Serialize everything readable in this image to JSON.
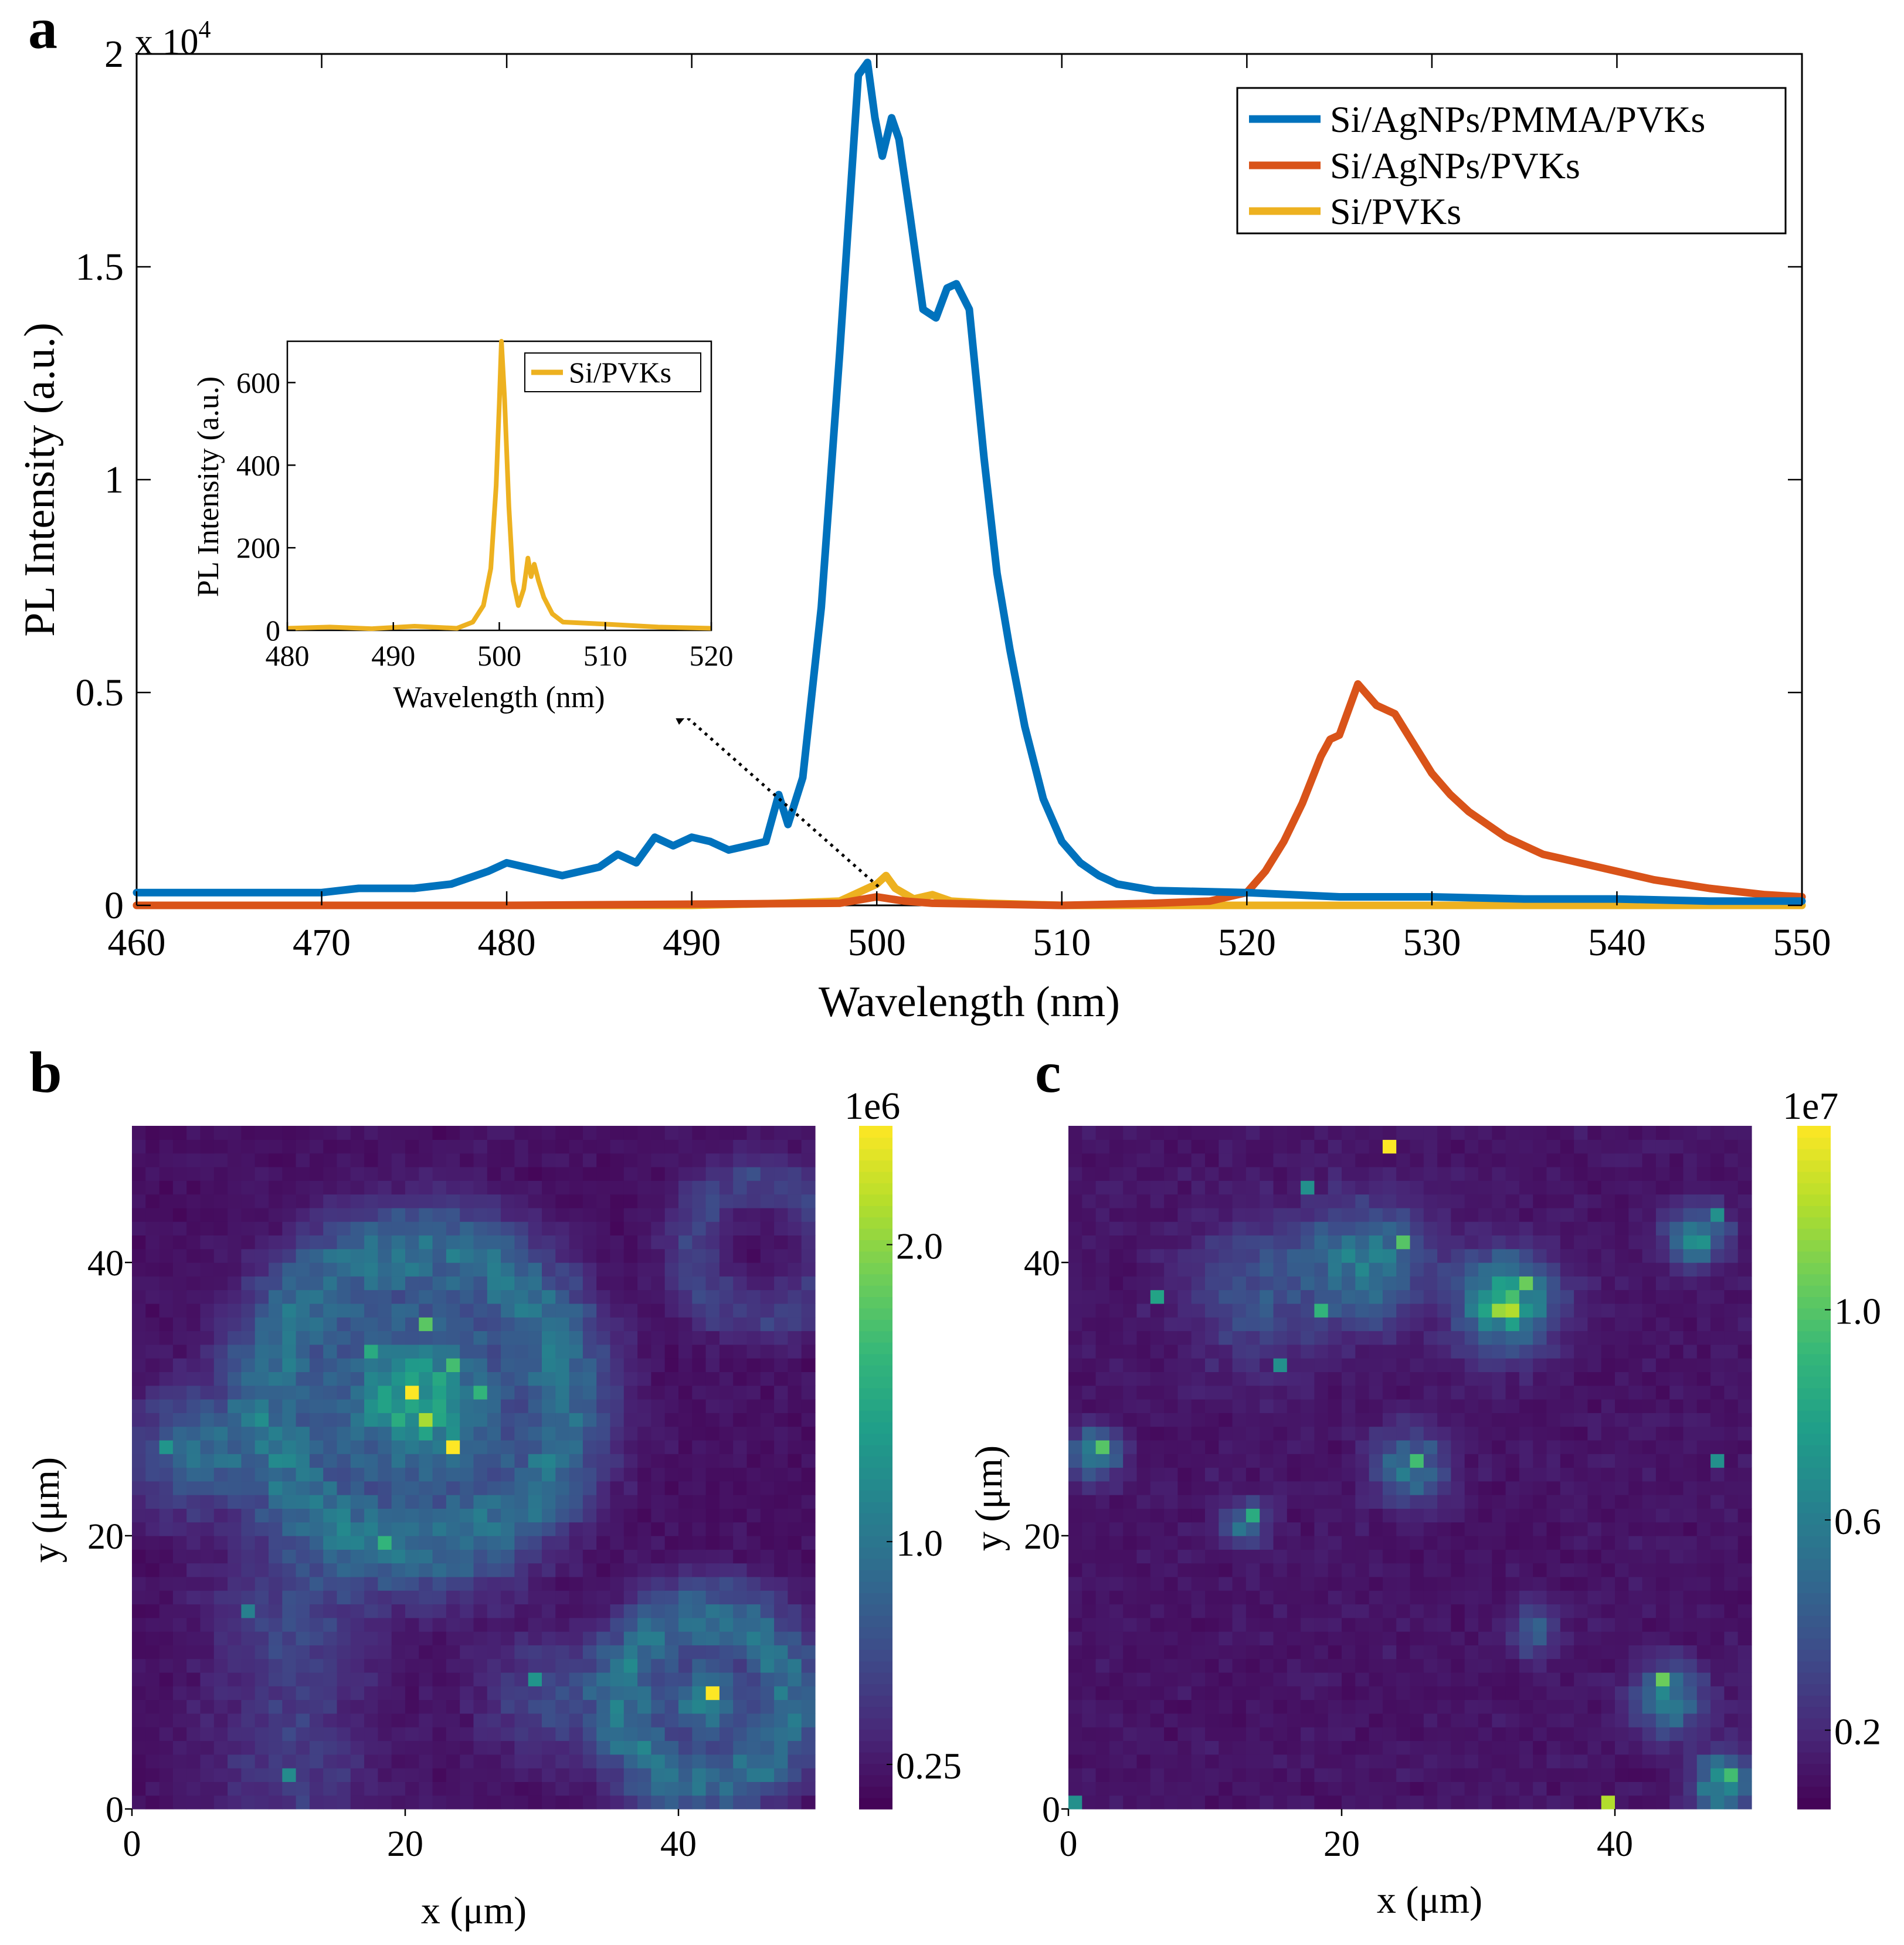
{
  "figure": {
    "panel_letters": [
      "a",
      "b",
      "c"
    ],
    "colors": {
      "blue": "#0072BD",
      "orange": "#D95319",
      "yellow": "#EDB120",
      "black": "#000000"
    }
  },
  "chart_data": [
    {
      "id": "a",
      "type": "line",
      "title": "",
      "xlabel": "Wavelength (nm)",
      "ylabel": "PL Intensity (a.u.)",
      "y_exponent_label": "x 10",
      "y_exponent_power": "4",
      "xlim": [
        460,
        550
      ],
      "ylim": [
        0,
        2.0
      ],
      "x_ticks": [
        460,
        470,
        480,
        490,
        500,
        510,
        520,
        530,
        540,
        550
      ],
      "y_ticks": [
        0,
        0.5,
        1,
        1.5,
        2
      ],
      "y_tick_labels": [
        "0",
        "0.5",
        "1",
        "1.5",
        "2"
      ],
      "legend_position": "top-right",
      "series": [
        {
          "name": "Si/AgNPs/PMMA/PVKs",
          "color": "#0072BD",
          "x": [
            460,
            465,
            470,
            472,
            475,
            477,
            479,
            480,
            481,
            482,
            483,
            485,
            486,
            487,
            488,
            489,
            490,
            491,
            492,
            493,
            494,
            494.7,
            495.2,
            496,
            497,
            498,
            499,
            499.5,
            499.9,
            500.3,
            500.8,
            501.2,
            501.8,
            502.5,
            503.2,
            503.8,
            504.3,
            505,
            505.8,
            506.5,
            507.2,
            508,
            509,
            510,
            511,
            512,
            513,
            515,
            520,
            525,
            530,
            535,
            540,
            545,
            550
          ],
          "y": [
            0.03,
            0.03,
            0.03,
            0.04,
            0.04,
            0.05,
            0.08,
            0.1,
            0.09,
            0.08,
            0.07,
            0.09,
            0.12,
            0.1,
            0.16,
            0.14,
            0.16,
            0.15,
            0.13,
            0.14,
            0.15,
            0.26,
            0.19,
            0.3,
            0.7,
            1.3,
            1.95,
            1.98,
            1.85,
            1.76,
            1.85,
            1.8,
            1.62,
            1.4,
            1.38,
            1.45,
            1.46,
            1.4,
            1.05,
            0.78,
            0.6,
            0.42,
            0.25,
            0.15,
            0.1,
            0.07,
            0.05,
            0.035,
            0.03,
            0.02,
            0.02,
            0.015,
            0.015,
            0.01,
            0.01
          ]
        },
        {
          "name": "Si/AgNPs/PVKs",
          "color": "#D95319",
          "x": [
            460,
            480,
            498,
            500,
            501.5,
            503,
            510,
            515,
            518,
            520,
            521,
            522,
            523,
            524,
            524.5,
            525,
            525.5,
            526,
            527,
            528,
            529,
            530,
            531,
            532,
            534,
            536,
            538,
            540,
            542,
            545,
            548,
            550
          ],
          "y": [
            0.0,
            0.0,
            0.005,
            0.02,
            0.01,
            0.005,
            0.0,
            0.005,
            0.01,
            0.03,
            0.08,
            0.15,
            0.24,
            0.35,
            0.39,
            0.4,
            0.46,
            0.52,
            0.47,
            0.45,
            0.38,
            0.31,
            0.26,
            0.22,
            0.16,
            0.12,
            0.1,
            0.08,
            0.06,
            0.04,
            0.025,
            0.02
          ]
        },
        {
          "name": "Si/PVKs",
          "color": "#EDB120",
          "x": [
            460,
            490,
            495,
            498,
            499,
            500,
            500.5,
            501,
            502,
            503,
            504,
            506,
            510,
            550
          ],
          "y": [
            0.0,
            0.0,
            0.005,
            0.01,
            0.03,
            0.05,
            0.07,
            0.04,
            0.015,
            0.025,
            0.01,
            0.005,
            0.0,
            0.0
          ]
        }
      ],
      "inset": {
        "type": "line",
        "xlabel": "Wavelength (nm)",
        "ylabel": "PL Intensity (a.u.)",
        "xlim": [
          480,
          520
        ],
        "ylim": [
          0,
          700
        ],
        "x_ticks": [
          480,
          490,
          500,
          510,
          520
        ],
        "y_ticks": [
          0,
          200,
          400,
          600
        ],
        "legend_position": "top-right",
        "series": [
          {
            "name": "Si/PVKs",
            "color": "#EDB120",
            "x": [
              480,
              484,
              488,
              492,
              496,
              497.5,
              498.5,
              499.2,
              499.7,
              500,
              500.2,
              500.5,
              500.9,
              501.3,
              501.8,
              502.3,
              502.7,
              503,
              503.3,
              503.7,
              504.2,
              505,
              506,
              510,
              515,
              520
            ],
            "y": [
              5,
              8,
              4,
              10,
              5,
              20,
              60,
              150,
              350,
              550,
              700,
              560,
              300,
              120,
              60,
              100,
              175,
              130,
              160,
              120,
              80,
              40,
              20,
              15,
              8,
              5
            ]
          }
        ]
      },
      "annotation": {
        "type": "dotted-arrow",
        "from_data": [
          500.5,
          0.02
        ],
        "to_label": "inset"
      }
    },
    {
      "id": "b",
      "type": "heatmap",
      "xlabel": "x (μm)",
      "ylabel": "y (μm)",
      "xlim": [
        0,
        50
      ],
      "ylim": [
        0,
        50
      ],
      "x_ticks": [
        0,
        20,
        40
      ],
      "y_ticks": [
        0,
        20,
        40
      ],
      "grid_size": [
        50,
        50
      ],
      "colormap": "viridis",
      "colorbar": {
        "multiplier_label": "1e6",
        "min": 0.1,
        "max": 2.4,
        "ticks": [
          0.25,
          1.0,
          2.0
        ],
        "tick_labels": [
          "0.25",
          "1.0",
          "2.0"
        ]
      },
      "background_level": 0.2,
      "features": [
        {
          "kind": "blob",
          "x": 21,
          "y": 30,
          "radius": 7,
          "value": 1.2
        },
        {
          "kind": "ring",
          "x": 21,
          "y": 30,
          "radius": 11,
          "width": 2.5,
          "value": 0.7
        },
        {
          "kind": "blob",
          "x": 4,
          "y": 26,
          "radius": 5,
          "value": 0.65
        },
        {
          "kind": "ring",
          "x": 42,
          "y": 8,
          "radius": 6,
          "width": 2,
          "value": 0.75
        },
        {
          "kind": "blob",
          "x": 42,
          "y": 8,
          "radius": 2.5,
          "value": 1.2
        },
        {
          "kind": "ring",
          "x": 46,
          "y": 41,
          "radius": 5,
          "width": 1.5,
          "value": 0.35
        },
        {
          "kind": "blob",
          "x": 30,
          "y": 8,
          "radius": 5,
          "value": 0.4
        },
        {
          "kind": "blob",
          "x": 12,
          "y": 14,
          "radius": 7,
          "value": 0.35
        },
        {
          "kind": "blob",
          "x": 12,
          "y": 3,
          "radius": 7,
          "value": 0.3
        }
      ],
      "hotspots": [
        {
          "x": 20,
          "y": 30,
          "value": 2.4
        },
        {
          "x": 23,
          "y": 26,
          "value": 2.4
        },
        {
          "x": 42,
          "y": 8,
          "value": 2.4
        },
        {
          "x": 21,
          "y": 28,
          "value": 2.1
        },
        {
          "x": 21,
          "y": 35,
          "value": 1.8
        },
        {
          "x": 23,
          "y": 32,
          "value": 1.7
        },
        {
          "x": 17,
          "y": 33,
          "value": 1.5
        },
        {
          "x": 25,
          "y": 30,
          "value": 1.6
        },
        {
          "x": 18,
          "y": 19,
          "value": 1.6
        },
        {
          "x": 2,
          "y": 26,
          "value": 1.3
        },
        {
          "x": 8,
          "y": 14,
          "value": 1.1
        },
        {
          "x": 29,
          "y": 9,
          "value": 1.3
        },
        {
          "x": 11,
          "y": 2,
          "value": 1.2
        }
      ]
    },
    {
      "id": "c",
      "type": "heatmap",
      "xlabel": "x (μm)",
      "ylabel": "y (μm)",
      "xlim": [
        0,
        50
      ],
      "ylim": [
        0,
        50
      ],
      "x_ticks": [
        0,
        20,
        40
      ],
      "y_ticks": [
        0,
        20,
        40
      ],
      "grid_size": [
        50,
        50
      ],
      "colormap": "viridis",
      "colorbar": {
        "multiplier_label": "1e7",
        "min": 0.05,
        "max": 1.35,
        "ticks": [
          0.2,
          0.6,
          1.0
        ],
        "tick_labels": [
          "0.2",
          "0.6",
          "1.0"
        ]
      },
      "background_level": 0.12,
      "features": [
        {
          "kind": "blob",
          "x": 32,
          "y": 37,
          "radius": 4,
          "value": 0.7
        },
        {
          "kind": "blob",
          "x": 22,
          "y": 40,
          "radius": 5,
          "value": 0.45
        },
        {
          "kind": "blob",
          "x": 14,
          "y": 38,
          "radius": 6,
          "value": 0.25
        },
        {
          "kind": "blob",
          "x": 25,
          "y": 25,
          "radius": 3,
          "value": 0.45
        },
        {
          "kind": "blob",
          "x": 2,
          "y": 26,
          "radius": 2,
          "value": 0.6
        },
        {
          "kind": "blob",
          "x": 46,
          "y": 42,
          "radius": 2.5,
          "value": 0.55
        },
        {
          "kind": "blob",
          "x": 44,
          "y": 8,
          "radius": 3,
          "value": 0.5
        },
        {
          "kind": "blob",
          "x": 48,
          "y": 2,
          "radius": 2.5,
          "value": 0.6
        },
        {
          "kind": "blob",
          "x": 34,
          "y": 13,
          "radius": 2,
          "value": 0.35
        },
        {
          "kind": "blob",
          "x": 13,
          "y": 21,
          "radius": 2,
          "value": 0.4
        }
      ],
      "hotspots": [
        {
          "x": 23,
          "y": 48,
          "value": 1.35
        },
        {
          "x": 39,
          "y": 0,
          "value": 1.2
        },
        {
          "x": 32,
          "y": 36,
          "value": 1.2
        },
        {
          "x": 31,
          "y": 36,
          "value": 1.15
        },
        {
          "x": 33,
          "y": 38,
          "value": 1.05
        },
        {
          "x": 24,
          "y": 41,
          "value": 1.0
        },
        {
          "x": 2,
          "y": 26,
          "value": 1.0
        },
        {
          "x": 25,
          "y": 25,
          "value": 0.95
        },
        {
          "x": 43,
          "y": 9,
          "value": 1.05
        },
        {
          "x": 48,
          "y": 2,
          "value": 0.95
        },
        {
          "x": 18,
          "y": 36,
          "value": 0.9
        },
        {
          "x": 13,
          "y": 21,
          "value": 0.85
        },
        {
          "x": 6,
          "y": 37,
          "value": 0.8
        },
        {
          "x": 17,
          "y": 45,
          "value": 0.7
        },
        {
          "x": 15,
          "y": 32,
          "value": 0.7
        },
        {
          "x": 47,
          "y": 25,
          "value": 0.7
        },
        {
          "x": 0,
          "y": 0,
          "value": 0.7
        },
        {
          "x": 47,
          "y": 43,
          "value": 0.7
        }
      ]
    }
  ]
}
